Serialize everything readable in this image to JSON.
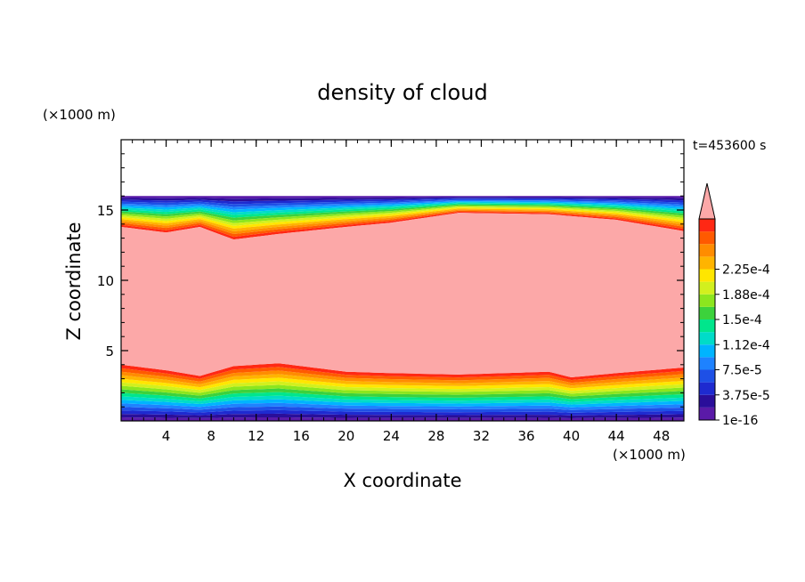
{
  "chart_data": {
    "type": "heatmap",
    "title": "density of cloud",
    "xlabel": "X coordinate",
    "ylabel": "Z coordinate",
    "x_unit": "(×1000 m)",
    "y_unit": "(×1000 m)",
    "time_label": "t=453600 s",
    "xlim": [
      0,
      50
    ],
    "ylim": [
      0,
      20
    ],
    "x_ticks": [
      4,
      8,
      12,
      16,
      20,
      24,
      28,
      32,
      36,
      40,
      44,
      48
    ],
    "y_ticks": [
      5,
      10,
      15
    ],
    "colorbar": {
      "colors": [
        "#5a1aa8",
        "#2a0e9a",
        "#1e2ad0",
        "#1e50e6",
        "#1e82ff",
        "#00b4ff",
        "#00dcc8",
        "#00e68c",
        "#3cd23c",
        "#8ce61e",
        "#d2f01e",
        "#ffe600",
        "#ffb400",
        "#ff8c00",
        "#ff5a00",
        "#ff2814"
      ],
      "over_color": "#fca8a8",
      "labels": [
        "1e-16",
        "3.75e-5",
        "7.5e-5",
        "1.12e-4",
        "1.5e-4",
        "1.88e-4",
        "2.25e-4"
      ]
    },
    "cloud_layer": {
      "top_z": 16,
      "top_profile": {
        "x": [
          0,
          4,
          7,
          10,
          14,
          20,
          24,
          30,
          38,
          44,
          50
        ],
        "z": [
          13.8,
          13.4,
          13.8,
          12.9,
          13.3,
          13.8,
          14.1,
          14.8,
          14.7,
          14.3,
          13.5
        ]
      },
      "bottom_profile": {
        "x": [
          0,
          4,
          7,
          10,
          14,
          20,
          24,
          30,
          38,
          40,
          44,
          50
        ],
        "z": [
          4.0,
          3.6,
          3.2,
          3.9,
          4.1,
          3.5,
          3.4,
          3.3,
          3.5,
          3.1,
          3.4,
          3.8
        ]
      }
    }
  }
}
